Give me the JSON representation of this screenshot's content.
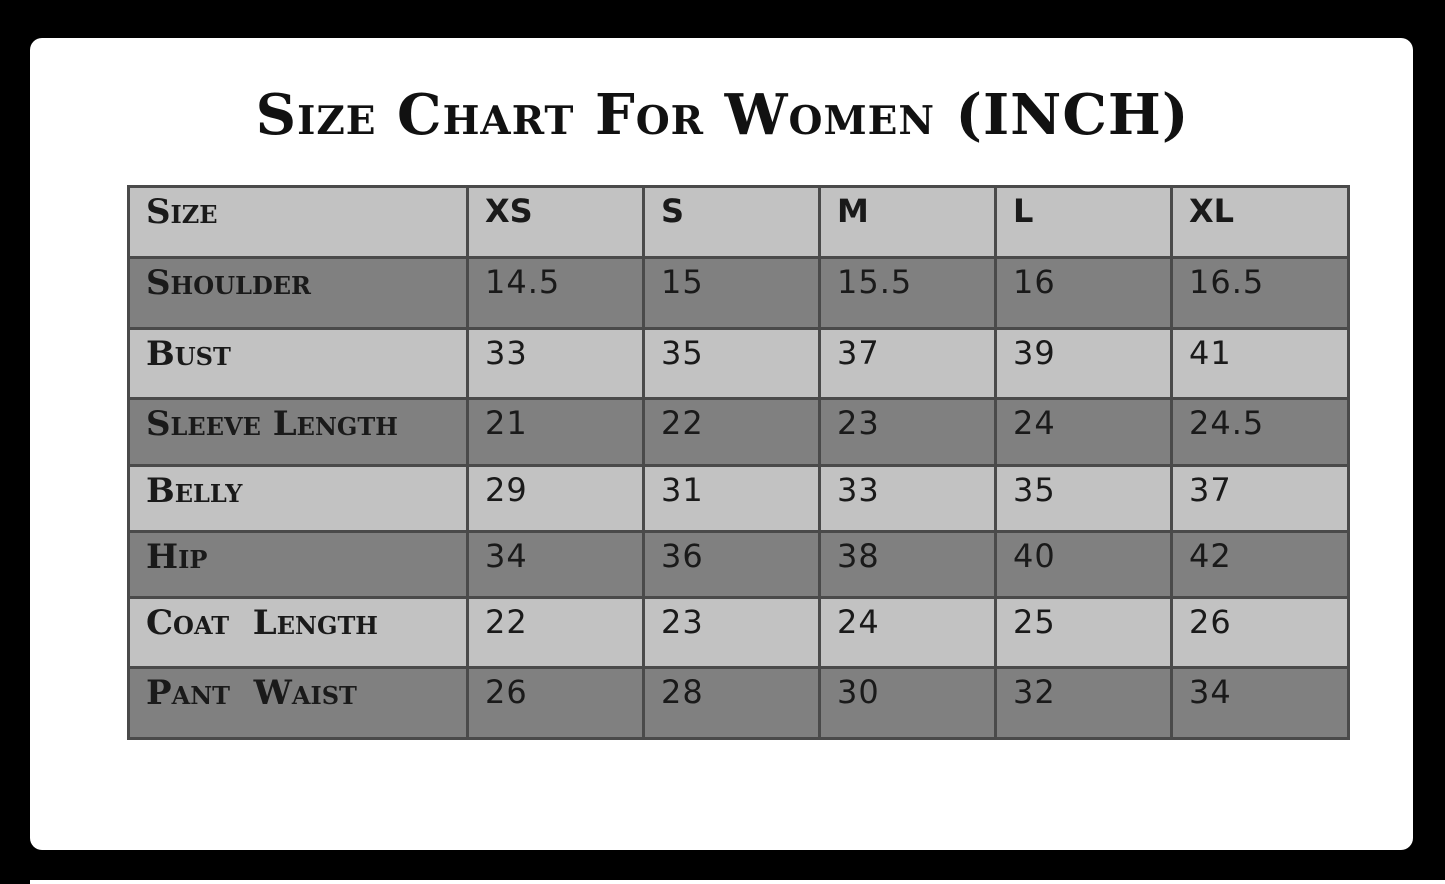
{
  "chart_data": {
    "type": "table",
    "title": "Size Chart For Women (INCH)",
    "columns": [
      "Size",
      "XS",
      "S",
      "M",
      "L",
      "XL"
    ],
    "rows": [
      {
        "label": "Shoulder",
        "values": [
          "14.5",
          "15",
          "15.5",
          "16",
          "16.5"
        ]
      },
      {
        "label": "Bust",
        "values": [
          "33",
          "35",
          "37",
          "39",
          "41"
        ]
      },
      {
        "label": "Sleeve Length",
        "values": [
          "21",
          "22",
          "23",
          "24",
          "24.5"
        ]
      },
      {
        "label": "Belly",
        "values": [
          "29",
          "31",
          "33",
          "35",
          "37"
        ]
      },
      {
        "label": "Hip",
        "values": [
          "34",
          "36",
          "38",
          "40",
          "42"
        ]
      },
      {
        "label": "Coat  Length",
        "values": [
          "22",
          "23",
          "24",
          "25",
          "26"
        ]
      },
      {
        "label": "Pant  Waist",
        "values": [
          "26",
          "28",
          "30",
          "32",
          "34"
        ]
      }
    ],
    "colors": {
      "header_row": "#c2c2c2",
      "alt_row_dark": "#808080",
      "border": "#4a4a4a",
      "background": "#000000",
      "panel": "#ffffff"
    }
  }
}
